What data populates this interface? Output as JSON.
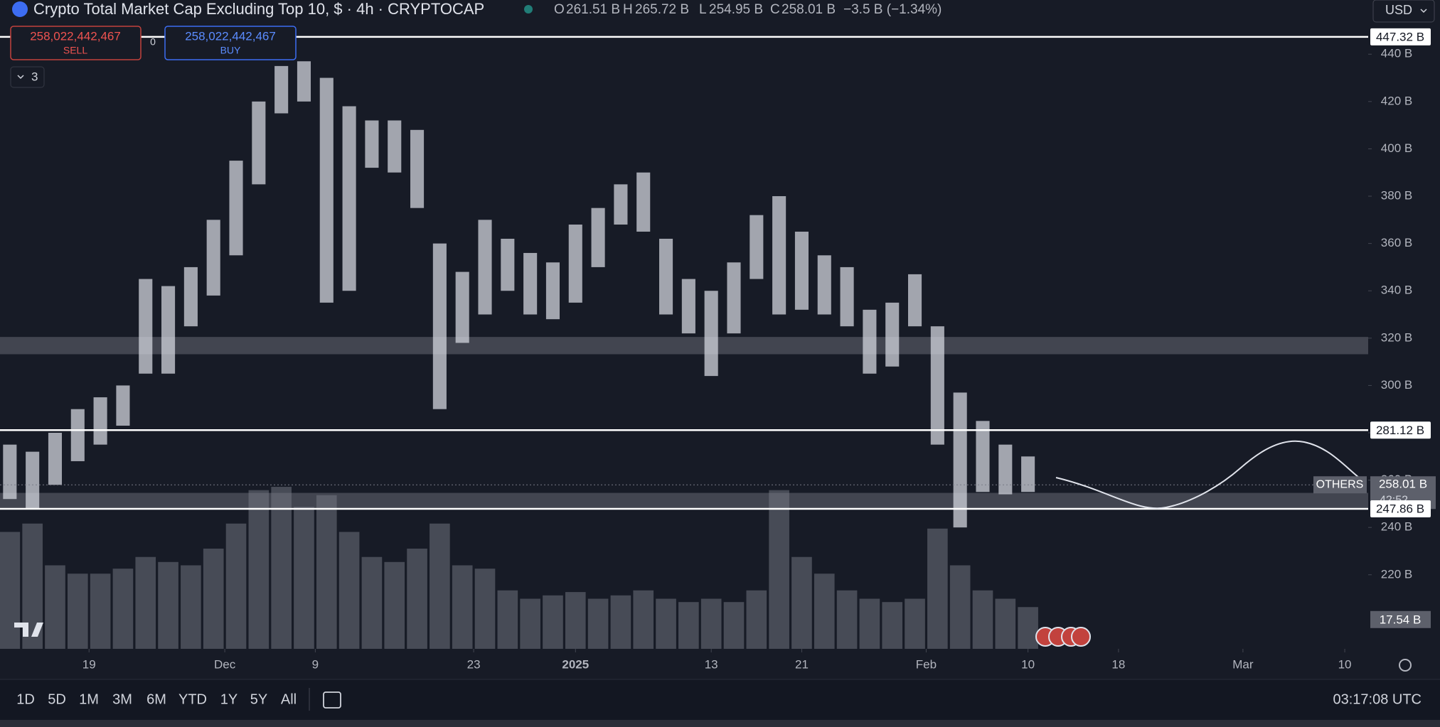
{
  "header": {
    "title": "Crypto Total Market Cap Excluding Top 10, $ · 4h · CRYPTOCAP",
    "open_label": "O",
    "open": "261.51 B",
    "high_label": "H",
    "high": "265.72 B",
    "low_label": "L",
    "low": "254.95 B",
    "close_label": "C",
    "close": "258.01 B",
    "change": "−3.5 B (−1.34%)",
    "currency": "USD"
  },
  "order": {
    "sell_price": "258,022,442,467",
    "sell_label": "SELL",
    "spread": "0",
    "buy_price": "258,022,442,467",
    "buy_label": "BUY",
    "indicators_count": "3"
  },
  "chart_data": {
    "type": "candlestick",
    "x": [
      -7,
      -5,
      -3,
      -1,
      1,
      3,
      5,
      7,
      9,
      11,
      13,
      15,
      17,
      19,
      21,
      23,
      25,
      27,
      29,
      31,
      33,
      35,
      37,
      39,
      41,
      43,
      45,
      47,
      49,
      51,
      53,
      55,
      57,
      59,
      61,
      63,
      65,
      67,
      69,
      71,
      73,
      75,
      77,
      79,
      81,
      83
    ],
    "high": [
      275,
      272,
      280,
      290,
      295,
      300,
      345,
      342,
      350,
      370,
      395,
      420,
      435,
      437,
      430,
      418,
      412,
      412,
      408,
      360,
      348,
      370,
      362,
      356,
      352,
      368,
      375,
      385,
      390,
      362,
      345,
      340,
      352,
      372,
      380,
      365,
      355,
      350,
      332,
      335,
      347,
      325,
      297,
      285,
      275,
      270
    ],
    "low": [
      252,
      248,
      258,
      268,
      275,
      283,
      305,
      305,
      325,
      338,
      355,
      385,
      415,
      420,
      335,
      340,
      392,
      390,
      375,
      290,
      318,
      330,
      340,
      330,
      328,
      335,
      350,
      368,
      365,
      330,
      322,
      304,
      322,
      345,
      330,
      332,
      330,
      325,
      305,
      308,
      325,
      275,
      240,
      255,
      254,
      255
    ],
    "volume": [
      70,
      75,
      50,
      45,
      45,
      48,
      55,
      52,
      50,
      60,
      75,
      95,
      97,
      85,
      92,
      70,
      55,
      52,
      60,
      75,
      50,
      48,
      35,
      30,
      32,
      34,
      30,
      32,
      35,
      30,
      28,
      30,
      28,
      35,
      95,
      55,
      45,
      35,
      30,
      28,
      30,
      72,
      50,
      35,
      30,
      25
    ],
    "color": "#d1d4dc",
    "volume_color": "#787b86",
    "xlim": [
      -7.87,
      113.07
    ],
    "xticks": [
      {
        "value": 0,
        "label": "19"
      },
      {
        "value": 12,
        "label": "Dec"
      },
      {
        "value": 20,
        "label": "9"
      },
      {
        "value": 34,
        "label": "23"
      },
      {
        "value": 43,
        "label": "2025"
      },
      {
        "value": 55,
        "label": "13"
      },
      {
        "value": 63,
        "label": "21"
      },
      {
        "value": 74,
        "label": "Feb"
      },
      {
        "value": 83,
        "label": "10"
      },
      {
        "value": 91,
        "label": "18"
      },
      {
        "value": 102,
        "label": "Mar"
      },
      {
        "value": 111,
        "label": "10"
      }
    ],
    "ylim": [
      188.7,
      462.9
    ],
    "yticks": [
      {
        "value": 220,
        "label": "220 B"
      },
      {
        "value": 240,
        "label": "240 B"
      },
      {
        "value": 260,
        "label": "260 B"
      },
      {
        "value": 280,
        "label": "280 B"
      },
      {
        "value": 300,
        "label": "300 B"
      },
      {
        "value": 320,
        "label": "320 B"
      },
      {
        "value": 340,
        "label": "340 B"
      },
      {
        "value": 360,
        "label": "360 B"
      },
      {
        "value": 380,
        "label": "380 B"
      },
      {
        "value": 400,
        "label": "400 B"
      },
      {
        "value": 420,
        "label": "420 B"
      },
      {
        "value": 440,
        "label": "440 B"
      }
    ],
    "volume_lim": [
      0,
      100
    ],
    "levels": [
      {
        "value": 447.32,
        "label": "447.32 B"
      },
      {
        "value": 281.12,
        "label": "281.12 B"
      },
      {
        "value": 247.86,
        "label": "247.86 B"
      }
    ],
    "zones": [
      [
        313.2,
        320.5
      ],
      [
        247.86,
        254.6
      ]
    ],
    "last": {
      "value": 258.01,
      "label": "258.01 B",
      "symbol": "OTHERS",
      "countdown": "42:52"
    },
    "volume_last": {
      "value": 17.54,
      "label": "17.54 B"
    }
  },
  "toolbar": {
    "ranges": [
      "1D",
      "5D",
      "1M",
      "3M",
      "6M",
      "YTD",
      "1Y",
      "5Y",
      "All"
    ],
    "clock": "03:17:08 UTC"
  }
}
